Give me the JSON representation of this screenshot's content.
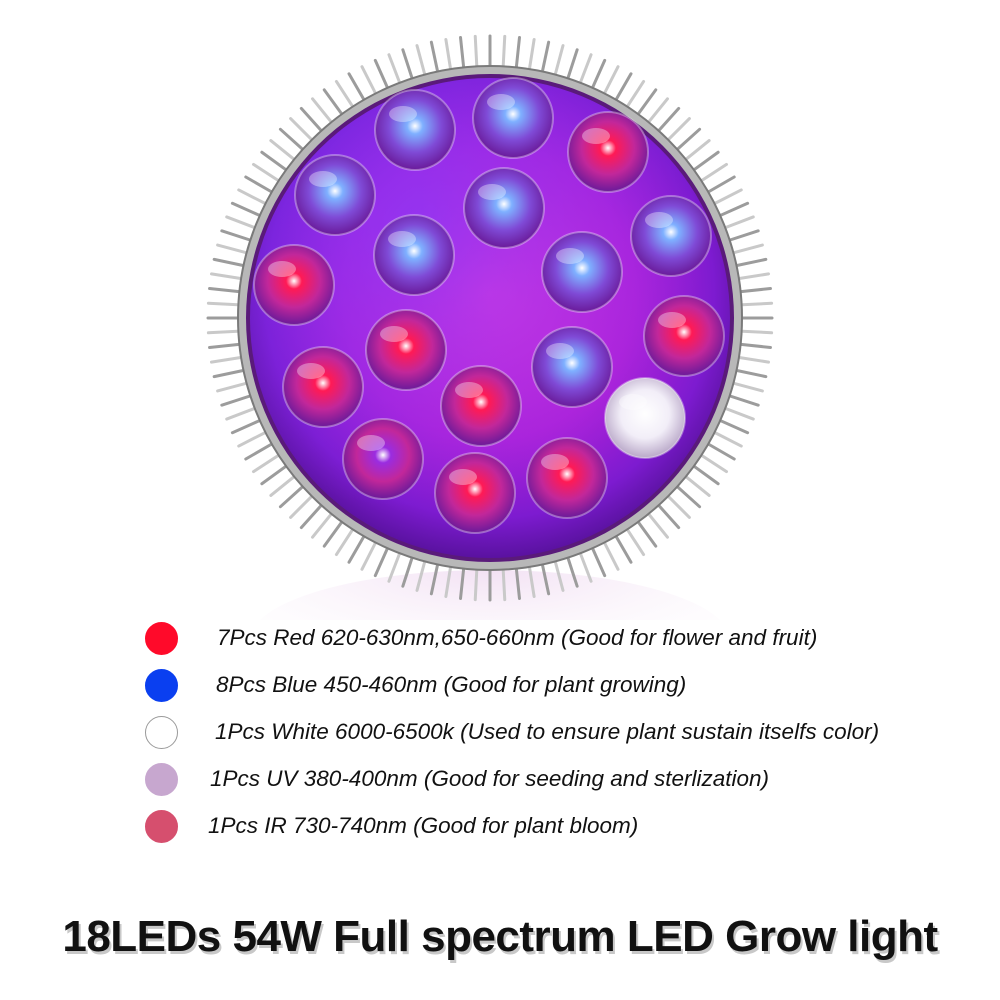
{
  "product": {
    "headline": "18LEDs 54W Full spectrum LED Grow light",
    "led_count": 18
  },
  "legend": [
    {
      "color": "#ff0a2a",
      "border": "#ff0a2a",
      "text": "7Pcs Red 620-630nm,650-660nm (Good for flower and fruit)"
    },
    {
      "color": "#0a3ff0",
      "border": "#0a3ff0",
      "text": "8Pcs Blue 450-460nm (Good for plant growing)"
    },
    {
      "color": "#ffffff",
      "border": "#9a9a9a",
      "text": "1Pcs White 6000-6500k (Used to ensure plant sustain itselfs color)"
    },
    {
      "color": "#c7a7cf",
      "border": "#c7a7cf",
      "text": "1Pcs UV 380-400nm (Good for seeding and sterlization)"
    },
    {
      "color": "#d64f6e",
      "border": "#d64f6e",
      "text": "1Pcs IR 730-740nm (Good for plant bloom)"
    }
  ],
  "led_colors": {
    "red": "#ff1a55",
    "blue": "#7fb0ff",
    "white": "#ffffff",
    "uv": "#9a2ce0",
    "ir": "#ff2a70"
  }
}
